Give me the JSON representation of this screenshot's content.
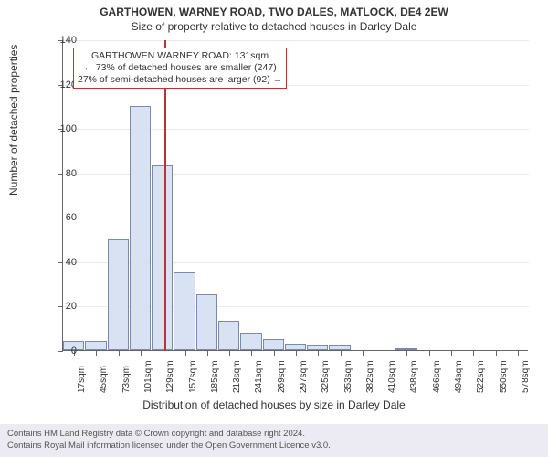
{
  "titles": {
    "line1": "GARTHOWEN, WARNEY ROAD, TWO DALES, MATLOCK, DE4 2EW",
    "line2": "Size of property relative to detached houses in Darley Dale"
  },
  "axes": {
    "ylabel": "Number of detached properties",
    "xlabel": "Distribution of detached houses by size in Darley Dale",
    "ylim_max": 140,
    "ytick_step": 20,
    "yticks": [
      0,
      20,
      40,
      60,
      80,
      100,
      120,
      140
    ],
    "xlabels": [
      "17sqm",
      "45sqm",
      "73sqm",
      "101sqm",
      "129sqm",
      "157sqm",
      "185sqm",
      "213sqm",
      "241sqm",
      "269sqm",
      "297sqm",
      "325sqm",
      "353sqm",
      "382sqm",
      "410sqm",
      "438sqm",
      "466sqm",
      "494sqm",
      "522sqm",
      "550sqm",
      "578sqm"
    ]
  },
  "chart": {
    "type": "histogram",
    "bar_fill": "#d9e2f3",
    "bar_stroke": "#7a8aa8",
    "grid_color": "#e9e9f0",
    "axis_color": "#666666",
    "background": "#ffffff",
    "values": [
      4,
      4,
      50,
      110,
      83,
      35,
      25,
      13,
      8,
      5,
      3,
      2,
      2,
      0,
      0,
      1,
      0,
      0,
      0,
      0,
      0
    ]
  },
  "marker": {
    "value_sqm": 131,
    "color": "#c03030",
    "annotation": {
      "line1": "GARTHOWEN WARNEY ROAD: 131sqm",
      "line2": "← 73% of detached houses are smaller (247)",
      "line3": "27% of semi-detached houses are larger (92) →"
    }
  },
  "footer": {
    "line1": "Contains HM Land Registry data © Crown copyright and database right 2024.",
    "line2": "Contains Royal Mail information licensed under the Open Government Licence v3.0."
  },
  "style": {
    "title_fontsize": 12,
    "label_fontsize": 12,
    "tick_fontsize": 11,
    "xtick_fontsize": 10,
    "annotation_fontsize": 10.5,
    "footer_fontsize": 9.5,
    "footer_bg": "#eceaf2"
  }
}
